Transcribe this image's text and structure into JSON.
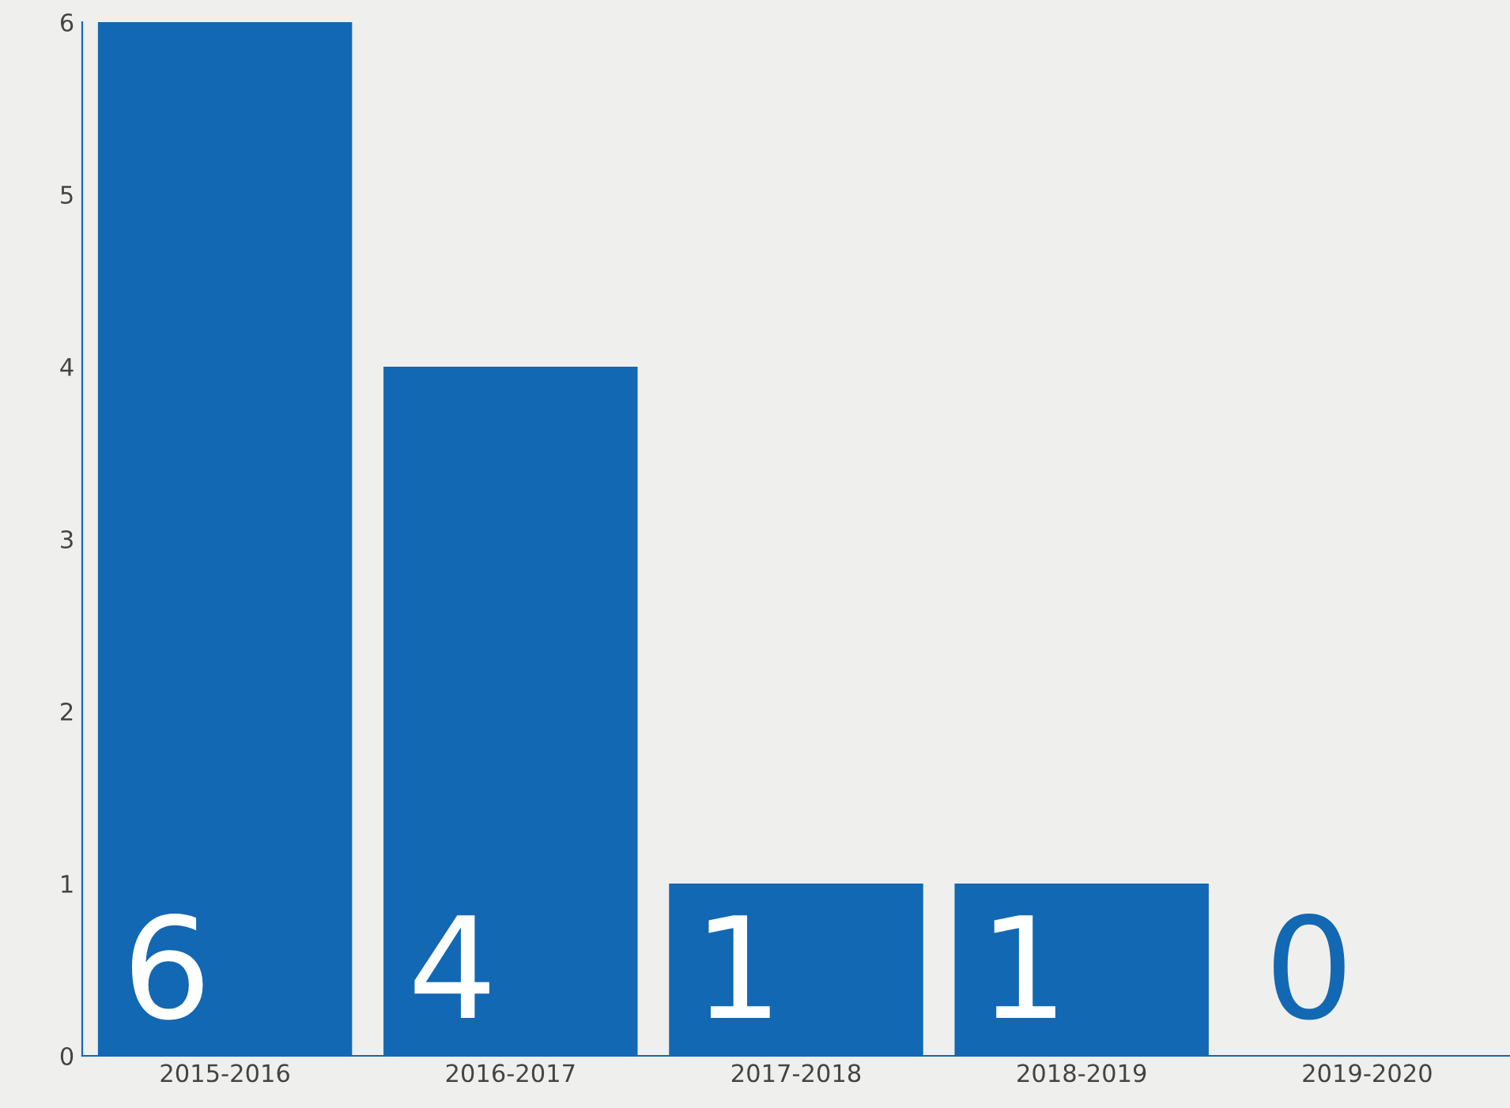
{
  "chart_data": {
    "type": "bar",
    "categories": [
      "2015-2016",
      "2016-2017",
      "2017-2018",
      "2018-2019",
      "2019-2020"
    ],
    "values": [
      6,
      4,
      1,
      1,
      0
    ],
    "color": "#1368b3",
    "ylim": [
      0,
      6
    ],
    "yticks": [
      0,
      1,
      2,
      3,
      4,
      5,
      6
    ],
    "data_labels": true,
    "grid": false,
    "legend": false
  }
}
